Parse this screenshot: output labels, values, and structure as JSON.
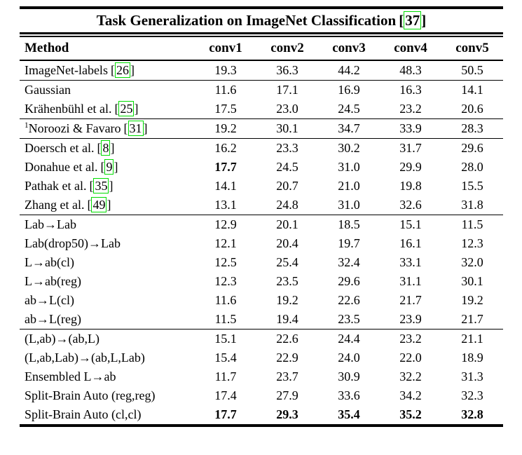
{
  "colors": {
    "background": "#ffffff",
    "text": "#000000",
    "link_box": "#00dd00"
  },
  "table": {
    "title": "Task Generalization on ImageNet Classification",
    "title_citation": "37",
    "citation_open": "[",
    "citation_close": "]",
    "columns": [
      "Method",
      "conv1",
      "conv2",
      "conv3",
      "conv4",
      "conv5"
    ],
    "rows": [
      {
        "method": "ImageNet-labels",
        "citation": "26",
        "values": [
          "19.3",
          "36.3",
          "44.2",
          "48.3",
          "50.5"
        ],
        "bold": [],
        "section_end": true
      },
      {
        "method": "Gaussian",
        "values": [
          "11.6",
          "17.1",
          "16.9",
          "16.3",
          "14.1"
        ],
        "bold": [],
        "section_end": false
      },
      {
        "method": "Krähenbühl et al.",
        "citation": "25",
        "values": [
          "17.5",
          "23.0",
          "24.5",
          "23.2",
          "20.6"
        ],
        "bold": [],
        "section_end": true
      },
      {
        "method": "Noroozi & Favaro",
        "sup": "1",
        "citation": "31",
        "values": [
          "19.2",
          "30.1",
          "34.7",
          "33.9",
          "28.3"
        ],
        "bold": [],
        "section_end": true
      },
      {
        "method": "Doersch et al.",
        "citation": "8",
        "values": [
          "16.2",
          "23.3",
          "30.2",
          "31.7",
          "29.6"
        ],
        "bold": [],
        "section_end": false
      },
      {
        "method": "Donahue et al.",
        "citation": "9",
        "values": [
          "17.7",
          "24.5",
          "31.0",
          "29.9",
          "28.0"
        ],
        "bold": [
          0
        ],
        "section_end": false
      },
      {
        "method": "Pathak et al.",
        "citation": "35",
        "values": [
          "14.1",
          "20.7",
          "21.0",
          "19.8",
          "15.5"
        ],
        "bold": [],
        "section_end": false
      },
      {
        "method": "Zhang et al.",
        "citation": "49",
        "values": [
          "13.1",
          "24.8",
          "31.0",
          "32.6",
          "31.8"
        ],
        "bold": [],
        "section_end": true
      },
      {
        "method": "Lab→Lab",
        "values": [
          "12.9",
          "20.1",
          "18.5",
          "15.1",
          "11.5"
        ],
        "bold": [],
        "section_end": false
      },
      {
        "method": "Lab(drop50)→Lab",
        "values": [
          "12.1",
          "20.4",
          "19.7",
          "16.1",
          "12.3"
        ],
        "bold": [],
        "section_end": false
      },
      {
        "method": "L→ab(cl)",
        "values": [
          "12.5",
          "25.4",
          "32.4",
          "33.1",
          "32.0"
        ],
        "bold": [],
        "section_end": false
      },
      {
        "method": "L→ab(reg)",
        "values": [
          "12.3",
          "23.5",
          "29.6",
          "31.1",
          "30.1"
        ],
        "bold": [],
        "section_end": false
      },
      {
        "method": "ab→L(cl)",
        "values": [
          "11.6",
          "19.2",
          "22.6",
          "21.7",
          "19.2"
        ],
        "bold": [],
        "section_end": false
      },
      {
        "method": "ab→L(reg)",
        "values": [
          "11.5",
          "19.4",
          "23.5",
          "23.9",
          "21.7"
        ],
        "bold": [],
        "section_end": true
      },
      {
        "method": "(L,ab)→(ab,L)",
        "values": [
          "15.1",
          "22.6",
          "24.4",
          "23.2",
          "21.1"
        ],
        "bold": [],
        "section_end": false
      },
      {
        "method": "(L,ab,Lab)→(ab,L,Lab)",
        "values": [
          "15.4",
          "22.9",
          "24.0",
          "22.0",
          "18.9"
        ],
        "bold": [],
        "section_end": false
      },
      {
        "method": "Ensembled L→ab",
        "values": [
          "11.7",
          "23.7",
          "30.9",
          "32.2",
          "31.3"
        ],
        "bold": [],
        "section_end": false
      },
      {
        "method": "Split-Brain Auto (reg,reg)",
        "values": [
          "17.4",
          "27.9",
          "33.6",
          "34.2",
          "32.3"
        ],
        "bold": [],
        "section_end": false
      },
      {
        "method": "Split-Brain Auto (cl,cl)",
        "values": [
          "17.7",
          "29.3",
          "35.4",
          "35.2",
          "32.8"
        ],
        "bold": [
          0,
          1,
          2,
          3,
          4
        ],
        "section_end": false
      }
    ]
  }
}
